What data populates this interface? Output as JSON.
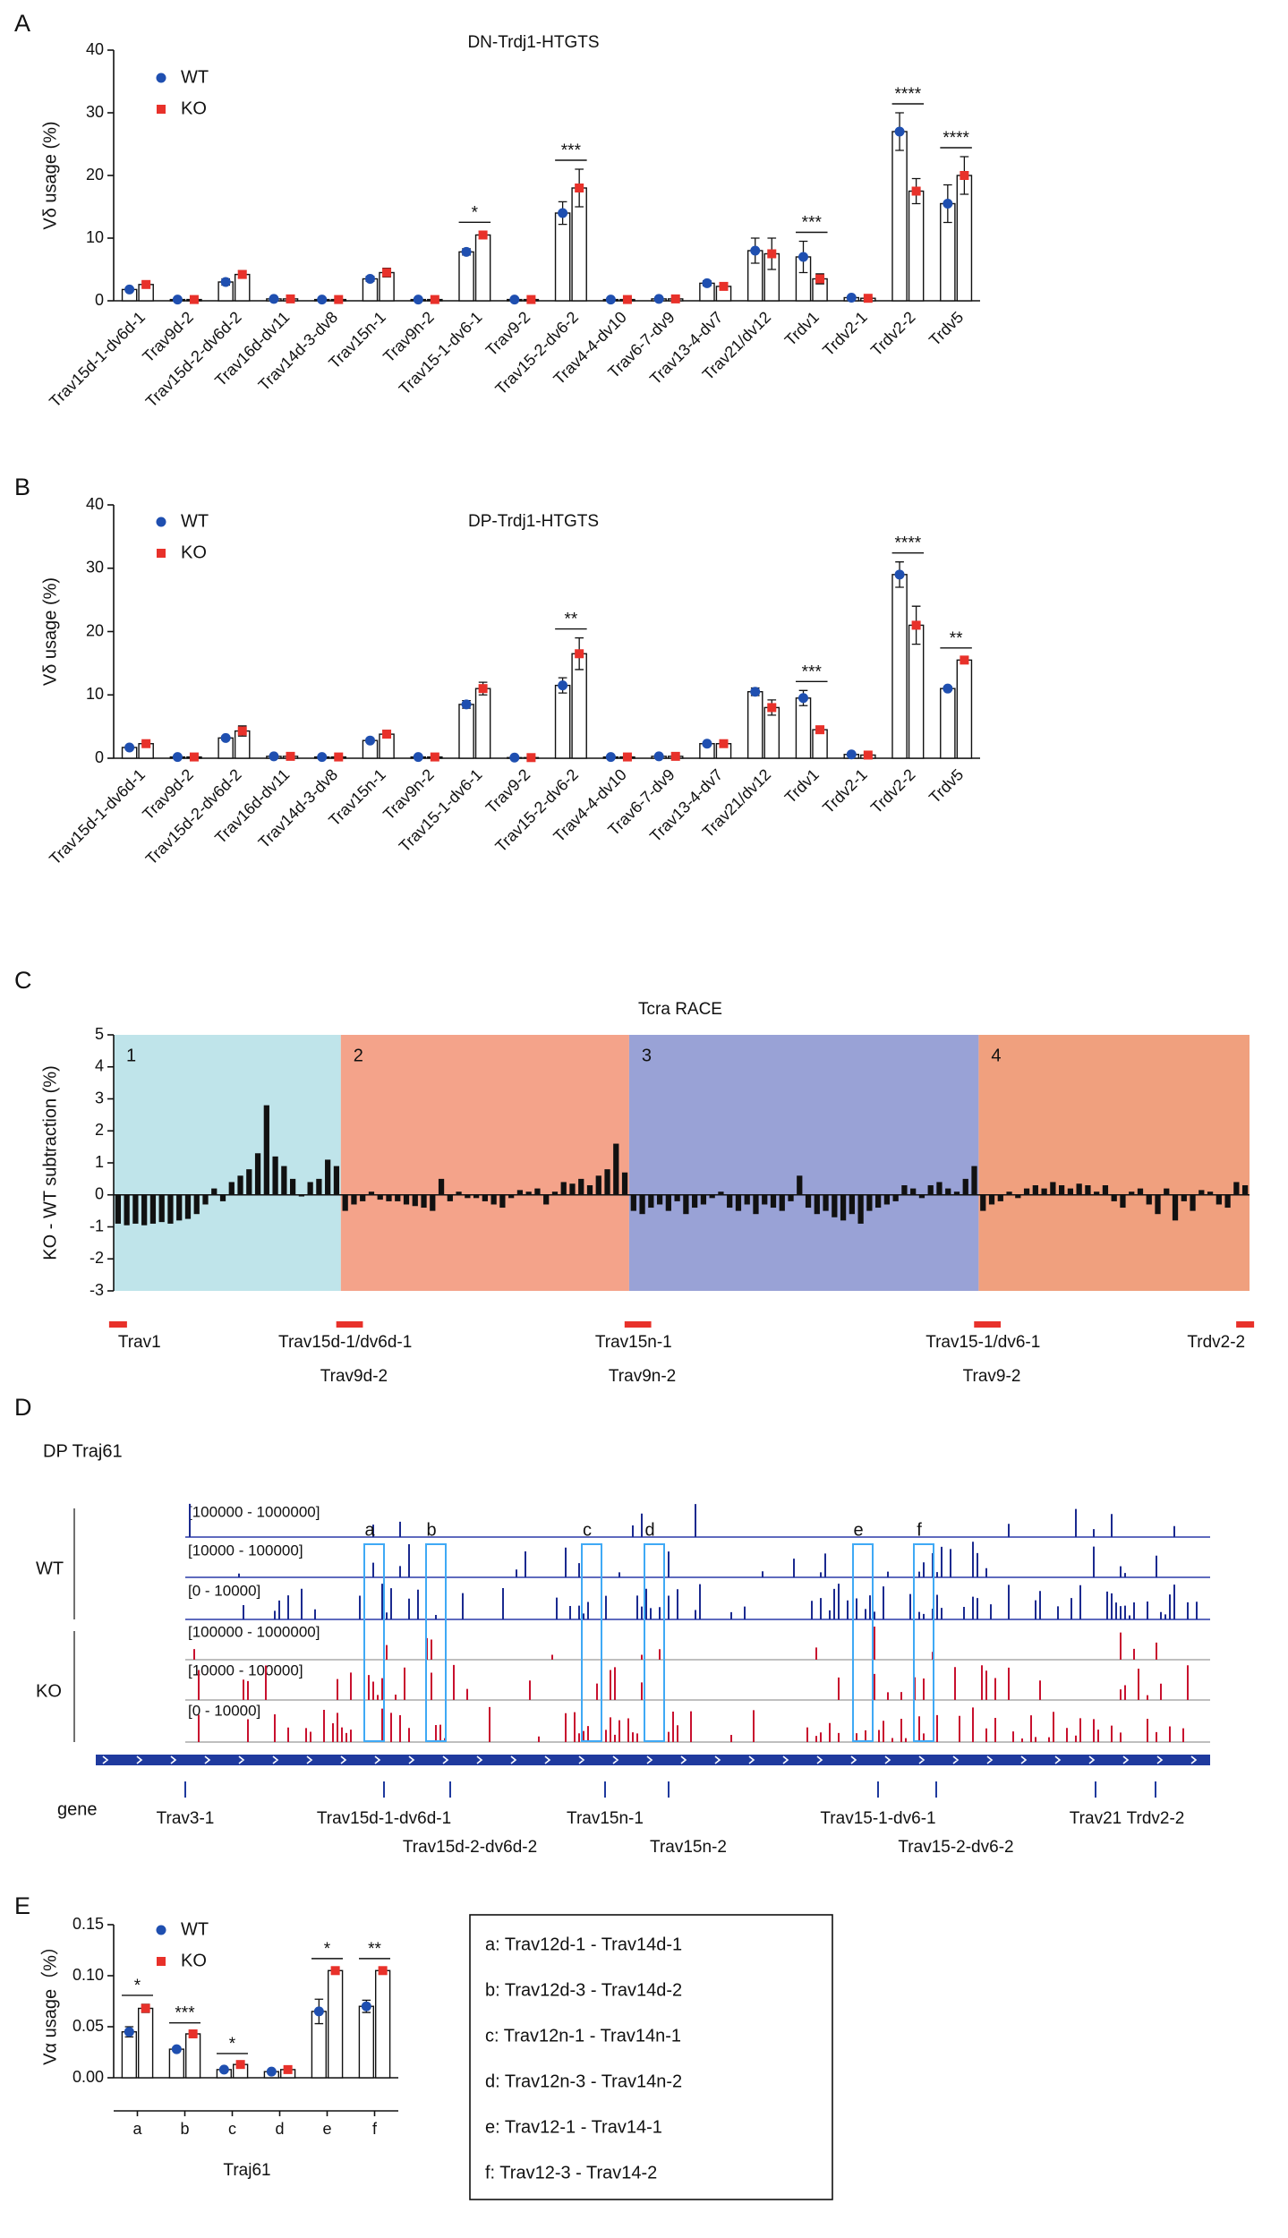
{
  "panel_letters": [
    "A",
    "B",
    "C",
    "D",
    "E"
  ],
  "chart_data": [
    {
      "type": "bar",
      "title": "DN-Trdj1-HTGTS",
      "ylabel": "Vδ usage (%)",
      "categories": [
        "Trav15d-1-dv6d-1",
        "Trav9d-2",
        "Trav15d-2-dv6d-2",
        "Trav16d-dv11",
        "Trav14d-3-dv8",
        "Trav15n-1",
        "Trav9n-2",
        "Trav15-1-dv6-1",
        "Trav9-2",
        "Trav15-2-dv6-2",
        "Trav4-4-dv10",
        "Trav6-7-dv9",
        "Trav13-4-dv7",
        "Trav21/dv12",
        "Trdv1",
        "Trdv2-1",
        "Trdv2-2",
        "Trdv5"
      ],
      "series": [
        {
          "name": "WT",
          "color": "#1f4fb0",
          "marker": "circle",
          "values": [
            1.8,
            0.2,
            3.0,
            0.3,
            0.2,
            3.5,
            0.2,
            7.8,
            0.2,
            14,
            0.2,
            0.3,
            2.8,
            8,
            7,
            0.5,
            27,
            15.5
          ],
          "errors": [
            0.2,
            0.1,
            0.5,
            0.1,
            0.1,
            0.4,
            0.1,
            0.5,
            0.1,
            1.8,
            0.1,
            0.1,
            0.4,
            2,
            2.5,
            0.2,
            3,
            3
          ]
        },
        {
          "name": "KO",
          "color": "#e8312a",
          "marker": "square",
          "values": [
            2.6,
            0.2,
            4.2,
            0.3,
            0.2,
            4.5,
            0.2,
            10.5,
            0.2,
            18,
            0.2,
            0.3,
            2.3,
            7.5,
            3.5,
            0.4,
            17.5,
            20
          ],
          "errors": [
            0.4,
            0.1,
            0.6,
            0.1,
            0.1,
            0.7,
            0.1,
            0.6,
            0.1,
            3,
            0.1,
            0.1,
            0.5,
            2.5,
            0.8,
            0.2,
            2,
            3
          ]
        }
      ],
      "significance": [
        null,
        null,
        null,
        null,
        null,
        null,
        null,
        "*",
        null,
        "***",
        null,
        null,
        null,
        null,
        "***",
        null,
        "****",
        "****"
      ],
      "ylim": [
        0,
        40
      ],
      "yticks": [
        0,
        10,
        20,
        30,
        40
      ]
    },
    {
      "type": "bar",
      "title": "DP-Trdj1-HTGTS",
      "ylabel": "Vδ usage (%)",
      "categories": [
        "Trav15d-1-dv6d-1",
        "Trav9d-2",
        "Trav15d-2-dv6d-2",
        "Trav16d-dv11",
        "Trav14d-3-dv8",
        "Trav15n-1",
        "Trav9n-2",
        "Trav15-1-dv6-1",
        "Trav9-2",
        "Trav15-2-dv6-2",
        "Trav4-4-dv10",
        "Trav6-7-dv9",
        "Trav13-4-dv7",
        "Trav21/dv12",
        "Trdv1",
        "Trdv2-1",
        "Trdv2-2",
        "Trdv5"
      ],
      "series": [
        {
          "name": "WT",
          "color": "#1f4fb0",
          "marker": "circle",
          "values": [
            1.7,
            0.2,
            3.2,
            0.3,
            0.2,
            2.8,
            0.2,
            8.5,
            0.1,
            11.5,
            0.2,
            0.3,
            2.3,
            10.5,
            9.5,
            0.6,
            29,
            11
          ],
          "errors": [
            0.2,
            0.1,
            0.3,
            0.1,
            0.1,
            0.3,
            0.1,
            0.6,
            0.1,
            1.2,
            0.1,
            0.1,
            0.2,
            0.6,
            1.2,
            0.1,
            2,
            0.3
          ]
        },
        {
          "name": "KO",
          "color": "#e8312a",
          "marker": "square",
          "values": [
            2.3,
            0.2,
            4.3,
            0.3,
            0.2,
            3.8,
            0.2,
            11,
            0.1,
            16.5,
            0.2,
            0.3,
            2.3,
            8,
            4.5,
            0.5,
            21,
            15.5
          ],
          "errors": [
            0.3,
            0.1,
            0.8,
            0.1,
            0.1,
            0.6,
            0.1,
            1,
            0.1,
            2.5,
            0.1,
            0.1,
            0.3,
            1.2,
            0.5,
            0.1,
            3,
            0.5
          ]
        }
      ],
      "significance": [
        null,
        null,
        null,
        null,
        null,
        null,
        null,
        null,
        null,
        "**",
        null,
        null,
        null,
        null,
        "***",
        null,
        "****",
        "**"
      ],
      "ylim": [
        0,
        40
      ],
      "yticks": [
        0,
        10,
        20,
        30,
        40
      ]
    },
    {
      "type": "bar",
      "title": "Tcra RACE",
      "ylabel": "KO - WT subtraction (%)",
      "bar_color": "#111111",
      "groups": [
        {
          "name": "1",
          "color": "#bfe4ea",
          "categories": [
            "Trav1",
            null,
            null,
            null,
            null,
            null,
            null,
            null,
            null,
            null,
            null,
            null,
            null,
            null,
            null,
            null,
            null,
            null,
            null,
            null,
            null,
            null,
            null,
            null,
            null,
            null
          ],
          "values": [
            -0.9,
            -0.95,
            -0.9,
            -0.95,
            -0.9,
            -0.85,
            -0.9,
            -0.8,
            -0.75,
            -0.6,
            -0.3,
            0.2,
            -0.2,
            0.4,
            0.6,
            0.8,
            1.3,
            2.8,
            1.2,
            0.9,
            0.5,
            -0.05,
            0.4,
            0.5,
            1.1,
            0.9
          ]
        },
        {
          "name": "2",
          "color": "#f4a38a",
          "categories": [
            "Trav15d-1/dv6d-1",
            "Trav9d-2",
            null,
            null,
            null,
            null,
            null,
            null,
            null,
            null,
            null,
            null,
            null,
            null,
            null,
            null,
            null,
            null,
            null,
            null,
            null,
            null,
            null,
            null,
            null,
            null,
            null,
            null,
            null,
            null,
            null,
            null,
            null
          ],
          "values": [
            -0.5,
            -0.3,
            -0.2,
            0.1,
            -0.15,
            -0.2,
            -0.2,
            -0.3,
            -0.35,
            -0.4,
            -0.5,
            0.5,
            -0.2,
            0.1,
            -0.1,
            -0.1,
            -0.2,
            -0.3,
            -0.4,
            -0.1,
            0.15,
            0.1,
            0.2,
            -0.3,
            0.1,
            0.4,
            0.35,
            0.5,
            0.3,
            0.6,
            0.8,
            1.6,
            0.7
          ]
        },
        {
          "name": "3",
          "color": "#99a2d6",
          "categories": [
            "Trav15n-1",
            "Trav9n-2",
            null,
            null,
            null,
            null,
            null,
            null,
            null,
            null,
            null,
            null,
            null,
            null,
            null,
            null,
            null,
            null,
            null,
            null,
            null,
            null,
            null,
            null,
            null,
            null,
            null,
            null,
            null,
            null,
            null,
            null,
            null,
            null,
            null,
            null,
            null,
            null,
            null,
            null
          ],
          "values": [
            -0.5,
            -0.6,
            -0.4,
            -0.3,
            -0.5,
            -0.2,
            -0.6,
            -0.4,
            -0.3,
            -0.1,
            0.1,
            -0.4,
            -0.5,
            -0.3,
            -0.6,
            -0.3,
            -0.4,
            -0.5,
            -0.2,
            0.6,
            -0.4,
            -0.6,
            -0.5,
            -0.7,
            -0.8,
            -0.6,
            -0.9,
            -0.5,
            -0.4,
            -0.3,
            -0.2,
            0.3,
            0.2,
            -0.1,
            0.3,
            0.4,
            0.2,
            0.1,
            0.5,
            0.9
          ]
        },
        {
          "name": "4",
          "color": "#f0a07e",
          "categories": [
            "Trav15-1/dv6-1",
            "Trav9-2",
            null,
            null,
            null,
            null,
            null,
            null,
            null,
            null,
            null,
            null,
            null,
            null,
            null,
            null,
            null,
            null,
            null,
            null,
            null,
            null,
            null,
            null,
            null,
            null,
            null,
            null,
            null,
            null,
            "Trdv2-2"
          ],
          "values": [
            -0.5,
            -0.3,
            -0.2,
            0.1,
            -0.1,
            0.2,
            0.3,
            0.2,
            0.4,
            0.3,
            0.2,
            0.35,
            0.3,
            0.1,
            0.3,
            -0.2,
            -0.4,
            0.1,
            0.2,
            -0.3,
            -0.6,
            0.2,
            -0.8,
            -0.2,
            -0.5,
            0.15,
            0.1,
            -0.3,
            -0.4,
            0.4,
            0.3
          ]
        }
      ],
      "marker_color": "#e8312a",
      "ylim": [
        -3,
        5
      ],
      "yticks": [
        -3,
        -2,
        -1,
        0,
        1,
        2,
        3,
        4,
        5
      ]
    },
    {
      "type": "bar",
      "ylabel": "Vα usage（%）",
      "xlabel": "Traj61",
      "categories": [
        "a",
        "b",
        "c",
        "d",
        "e",
        "f"
      ],
      "series": [
        {
          "name": "WT",
          "color": "#1f4fb0",
          "marker": "circle",
          "values": [
            0.045,
            0.028,
            0.008,
            0.006,
            0.065,
            0.07
          ],
          "errors": [
            0.005,
            0.002,
            0.001,
            0.001,
            0.012,
            0.006
          ]
        },
        {
          "name": "KO",
          "color": "#e8312a",
          "marker": "square",
          "values": [
            0.068,
            0.043,
            0.013,
            0.008,
            0.105,
            0.105
          ],
          "errors": [
            0.004,
            0.002,
            0.002,
            0.001,
            0.003,
            0.003
          ]
        }
      ],
      "significance": [
        "*",
        "***",
        "*",
        null,
        "*",
        "**"
      ],
      "ylim": [
        0,
        0.15
      ],
      "yticks": [
        {
          "value": 0,
          "label": "0.00"
        },
        {
          "value": 0.05,
          "label": "0.05"
        },
        {
          "value": 0.1,
          "label": "0.10"
        },
        {
          "value": 0.15,
          "label": "0.15"
        }
      ],
      "key": [
        "a: Trav12d-1 - Trav14d-1",
        "b: Trav12d-3 - Trav14d-2",
        "c: Trav12n-1 - Trav14n-1",
        "d: Trav12n-3 - Trav14n-2",
        "e: Trav12-1 - Trav14-1",
        "f: Trav12-3 - Trav14-2"
      ]
    }
  ],
  "genome_browser": {
    "title": "DP Traj61",
    "tracks": [
      {
        "name": "WT",
        "color": "#1b2a8f",
        "ranges": [
          "[100000 - 1000000]",
          "[10000 - 100000]",
          "[0 - 10000]"
        ]
      },
      {
        "name": "KO",
        "color": "#c8102e",
        "ranges": [
          "[100000 - 1000000]",
          "[10000 - 100000]",
          "[0 - 10000]"
        ]
      }
    ],
    "highlights": [
      "a",
      "b",
      "c",
      "d",
      "e",
      "f"
    ],
    "gene_label": "gene",
    "genes": [
      "Trav3-1",
      "Trav15d-1-dv6d-1",
      "Trav15d-2-dv6d-2",
      "Trav15n-1",
      "Trav15n-2",
      "Trav15-1-dv6-1",
      "Trav15-2-dv6-2",
      "Trav21",
      "Trdv2-2"
    ]
  }
}
